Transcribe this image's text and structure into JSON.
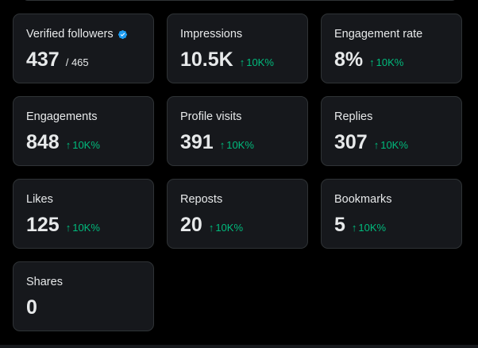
{
  "cards": [
    {
      "label": "Verified followers",
      "value": "437",
      "sub": "/ 465",
      "icon": "verified-badge-icon",
      "accent": "#1d9bf0"
    },
    {
      "label": "Impressions",
      "value": "10.5K",
      "delta": "10K%",
      "arrow": "↑"
    },
    {
      "label": "Engagement rate",
      "value": "8%",
      "delta": "10K%",
      "arrow": "↑"
    },
    {
      "label": "Engagements",
      "value": "848",
      "delta": "10K%",
      "arrow": "↑"
    },
    {
      "label": "Profile visits",
      "value": "391",
      "delta": "10K%",
      "arrow": "↑"
    },
    {
      "label": "Replies",
      "value": "307",
      "delta": "10K%",
      "arrow": "↑"
    },
    {
      "label": "Likes",
      "value": "125",
      "delta": "10K%",
      "arrow": "↑"
    },
    {
      "label": "Reposts",
      "value": "20",
      "delta": "10K%",
      "arrow": "↑"
    },
    {
      "label": "Bookmarks",
      "value": "5",
      "delta": "10K%",
      "arrow": "↑"
    },
    {
      "label": "Shares",
      "value": "0"
    }
  ],
  "colors": {
    "background": "#000000",
    "card": "#16181c",
    "border": "#2f3336",
    "text": "#e7e9ea",
    "positive": "#00ba7c",
    "verified": "#1d9bf0"
  }
}
